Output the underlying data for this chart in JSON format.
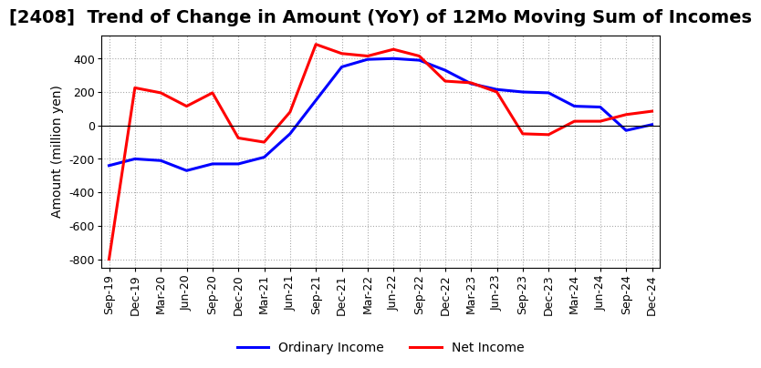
{
  "title": "[2408]  Trend of Change in Amount (YoY) of 12Mo Moving Sum of Incomes",
  "ylabel": "Amount (million yen)",
  "xlabels": [
    "Sep-19",
    "Dec-19",
    "Mar-20",
    "Jun-20",
    "Sep-20",
    "Dec-20",
    "Mar-21",
    "Jun-21",
    "Sep-21",
    "Dec-21",
    "Mar-22",
    "Jun-22",
    "Sep-22",
    "Dec-22",
    "Mar-23",
    "Jun-23",
    "Sep-23",
    "Dec-23",
    "Mar-24",
    "Jun-24",
    "Sep-24",
    "Dec-24"
  ],
  "ordinary_income": [
    -240,
    -200,
    -210,
    -270,
    -230,
    -230,
    -190,
    -50,
    150,
    350,
    395,
    400,
    390,
    330,
    250,
    215,
    200,
    195,
    115,
    110,
    -30,
    5
  ],
  "net_income": [
    -800,
    225,
    195,
    115,
    195,
    -75,
    -100,
    80,
    485,
    430,
    415,
    455,
    415,
    265,
    255,
    200,
    -50,
    -55,
    25,
    25,
    65,
    85
  ],
  "ylim": [
    -850,
    540
  ],
  "yticks": [
    -800,
    -600,
    -400,
    -200,
    0,
    200,
    400
  ],
  "ordinary_color": "#0000ff",
  "net_color": "#ff0000",
  "background_color": "#ffffff",
  "grid_color": "#aaaaaa",
  "title_fontsize": 14,
  "axis_fontsize": 10,
  "tick_fontsize": 9
}
